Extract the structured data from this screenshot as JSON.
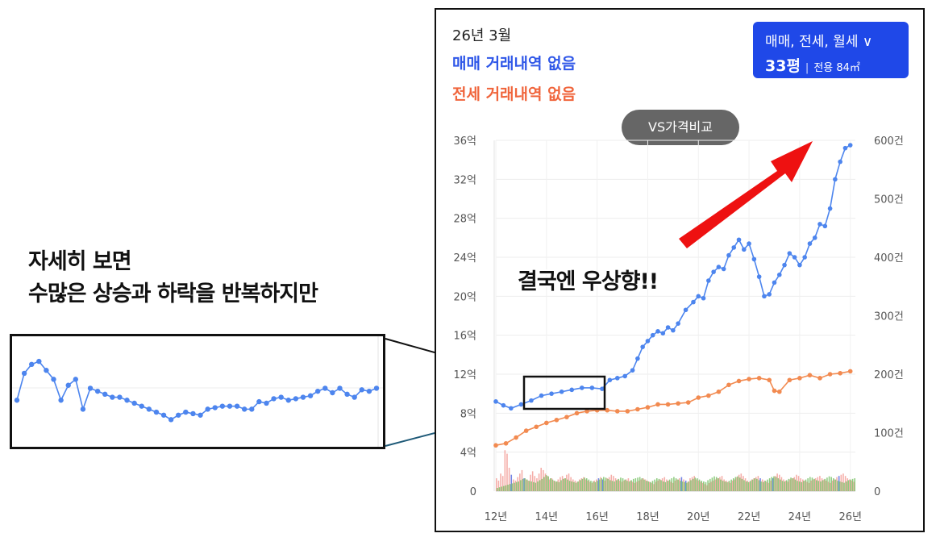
{
  "annotation": {
    "line1": "자세히 보면",
    "line2": "수많은 상승과 하락을 반복하지만",
    "trend_caption": "결국엔 우상향!!"
  },
  "header": {
    "date": "26년 3월",
    "sale_status": "매매 거래내역 없음",
    "jeonse_status": "전세 거래내역 없음"
  },
  "type_selector": {
    "types": "매매, 전세, 월세 ∨",
    "pyeong": "33평",
    "area": "전용 84㎡"
  },
  "vs_button": "VS가격비교",
  "colors": {
    "sale": "#4d85ee",
    "jeonse": "#f28a50",
    "vol_red": "#f3a09a",
    "vol_green": "#7bc36a",
    "vol_blue": "#5a6ee0",
    "arrow": "#ee1111"
  },
  "chart_data": {
    "type": "line",
    "x_tick_labels": [
      "12년",
      "14년",
      "16년",
      "18년",
      "20년",
      "22년",
      "24년",
      "26년"
    ],
    "y_left_tick_labels": [
      "0",
      "4억",
      "8억",
      "12억",
      "16억",
      "20억",
      "24억",
      "28억",
      "32억",
      "36억"
    ],
    "y_right_tick_labels": [
      "0",
      "100건",
      "200건",
      "300건",
      "400건",
      "500건",
      "600건"
    ],
    "xlim": [
      2012,
      2026.2
    ],
    "ylim_left": [
      0,
      36
    ],
    "ylim_right": [
      0,
      600
    ],
    "grid": true,
    "series": [
      {
        "key": "sale",
        "x": [
          2012.0,
          2012.3,
          2012.6,
          2013.0,
          2013.4,
          2013.8,
          2014.2,
          2014.6,
          2015.0,
          2015.4,
          2015.8,
          2016.2,
          2016.5,
          2016.8,
          2017.1,
          2017.4,
          2017.6,
          2017.8,
          2018.0,
          2018.2,
          2018.4,
          2018.6,
          2018.8,
          2019.0,
          2019.2,
          2019.5,
          2019.8,
          2020.0,
          2020.2,
          2020.4,
          2020.6,
          2020.8,
          2021.0,
          2021.2,
          2021.4,
          2021.6,
          2021.8,
          2022.0,
          2022.2,
          2022.4,
          2022.6,
          2022.8,
          2023.0,
          2023.2,
          2023.4,
          2023.6,
          2023.8,
          2024.0,
          2024.2,
          2024.4,
          2024.6,
          2024.8,
          2025.0,
          2025.2,
          2025.4,
          2025.6,
          2025.8,
          2026.0
        ],
        "values": [
          9.2,
          8.8,
          8.5,
          8.9,
          9.3,
          9.8,
          10.0,
          10.2,
          10.4,
          10.6,
          10.6,
          10.5,
          11.4,
          11.6,
          11.8,
          12.4,
          13.6,
          14.8,
          15.4,
          16.0,
          16.4,
          16.2,
          16.8,
          16.5,
          17.2,
          18.6,
          19.4,
          20.0,
          19.8,
          21.6,
          22.5,
          23.0,
          22.8,
          24.2,
          25.0,
          25.8,
          24.8,
          25.4,
          23.8,
          22.0,
          20.0,
          20.2,
          21.4,
          22.2,
          23.2,
          24.4,
          24.0,
          23.2,
          24.0,
          25.4,
          26.0,
          27.4,
          27.2,
          29.0,
          32.0,
          33.8,
          35.2,
          35.5
        ]
      },
      {
        "key": "jeonse",
        "x": [
          2012.0,
          2012.4,
          2012.8,
          2013.2,
          2013.6,
          2014.0,
          2014.4,
          2014.8,
          2015.2,
          2015.6,
          2016.0,
          2016.4,
          2016.8,
          2017.2,
          2017.6,
          2018.0,
          2018.4,
          2018.8,
          2019.2,
          2019.6,
          2020.0,
          2020.4,
          2020.8,
          2021.2,
          2021.6,
          2022.0,
          2022.4,
          2022.8,
          2023.0,
          2023.2,
          2023.6,
          2024.0,
          2024.4,
          2024.8,
          2025.2,
          2025.6,
          2026.0
        ],
        "values": [
          4.7,
          4.9,
          5.5,
          6.2,
          6.6,
          7.0,
          7.3,
          7.6,
          8.0,
          8.2,
          8.3,
          8.3,
          8.2,
          8.2,
          8.4,
          8.6,
          8.9,
          8.9,
          9.0,
          9.1,
          9.6,
          9.8,
          10.2,
          10.9,
          11.3,
          11.5,
          11.6,
          11.4,
          10.3,
          10.2,
          11.4,
          11.6,
          11.9,
          11.6,
          12.0,
          12.1,
          12.3
        ]
      }
    ],
    "volume": {
      "note": "monthly transaction counts (right axis), red = sale, green = jeonse",
      "sale": [
        22,
        18,
        30,
        26,
        70,
        64,
        40,
        28,
        20,
        18,
        24,
        30,
        36,
        22,
        20,
        18,
        28,
        34,
        26,
        22,
        30,
        40,
        36,
        30,
        26,
        20,
        22,
        18,
        16,
        20,
        24,
        26,
        22,
        28,
        30,
        24,
        20,
        18,
        16,
        20,
        22,
        24,
        20,
        18,
        16,
        14,
        18,
        20,
        22,
        24,
        20,
        18,
        22,
        24,
        28,
        26,
        22,
        20,
        18,
        16,
        18,
        20,
        22,
        18,
        16,
        14,
        16,
        18,
        20,
        22,
        20,
        18,
        16,
        14,
        12,
        16,
        18,
        20,
        22,
        24,
        20,
        18,
        16,
        14,
        18,
        20,
        22,
        24,
        20,
        18,
        16,
        22,
        24,
        26,
        20,
        18,
        16,
        14,
        12,
        10,
        14,
        16,
        18,
        20,
        22,
        24,
        26,
        20,
        18,
        16,
        14,
        18,
        20,
        24,
        28,
        30,
        26,
        22,
        18,
        16,
        20,
        22,
        24,
        26,
        22,
        20,
        18,
        16,
        14,
        18,
        22,
        26,
        30,
        28,
        24,
        20,
        18,
        16,
        20,
        22,
        24,
        28,
        26,
        22,
        20,
        18,
        16,
        14,
        18,
        20,
        22,
        24,
        26,
        22,
        20,
        18,
        16,
        14,
        18,
        20,
        24,
        26,
        28,
        30,
        26,
        22,
        20,
        18,
        16
      ],
      "jeonse": [
        10,
        12,
        14,
        16,
        18,
        20,
        22,
        24,
        26,
        28,
        30,
        34,
        38,
        40,
        36,
        32,
        30,
        28,
        26,
        30,
        34,
        38,
        44,
        50,
        46,
        40,
        36,
        32,
        30,
        28,
        34,
        38,
        40,
        36,
        32,
        30,
        28,
        26,
        30,
        34,
        38,
        42,
        40,
        36,
        32,
        30,
        28,
        32,
        36,
        40,
        44,
        42,
        38,
        34,
        32,
        30,
        34,
        38,
        42,
        40,
        36,
        32,
        30,
        34,
        38,
        40,
        42,
        44,
        40,
        36,
        32,
        30,
        28,
        32,
        36,
        40,
        38,
        34,
        30,
        28,
        32,
        36,
        40,
        44,
        40,
        36,
        32,
        30,
        28,
        26,
        30,
        34,
        38,
        42,
        40,
        36,
        32,
        30,
        28,
        34,
        38,
        42,
        46,
        44,
        40,
        36,
        32,
        30,
        28,
        32,
        36,
        40,
        44,
        46,
        42,
        38,
        34,
        30,
        28,
        32,
        36,
        40,
        38,
        34,
        30,
        28,
        32,
        36,
        40,
        44,
        46,
        44,
        40,
        36,
        32,
        30,
        34,
        38,
        42,
        40,
        36,
        32,
        30,
        28,
        32,
        36,
        40,
        44,
        42,
        38,
        34,
        32,
        30,
        34,
        38,
        42,
        46,
        44,
        40,
        36,
        32,
        30,
        28,
        26,
        30,
        34,
        36,
        38,
        40
      ]
    },
    "zoom_inset": {
      "x": [
        2013.1,
        2013.17,
        2013.24,
        2013.31,
        2013.38,
        2013.45,
        2013.52,
        2013.59,
        2013.66,
        2013.73,
        2013.8,
        2013.87,
        2013.94,
        2014.01,
        2014.08,
        2014.15,
        2014.22,
        2014.29,
        2014.36,
        2014.43,
        2014.5,
        2014.57,
        2014.64,
        2014.71,
        2014.78,
        2014.85,
        2014.92,
        2014.99,
        2015.06,
        2015.13,
        2015.2,
        2015.27,
        2015.34,
        2015.41,
        2015.48,
        2015.55,
        2015.62,
        2015.69,
        2015.76,
        2015.83,
        2015.9,
        2015.97,
        2016.04,
        2016.11,
        2016.18,
        2016.25,
        2016.32,
        2016.39,
        2016.46,
        2016.53
      ],
      "values": [
        9.6,
        10.5,
        10.8,
        10.9,
        10.6,
        10.3,
        9.6,
        10.1,
        10.3,
        9.3,
        10.0,
        9.9,
        9.8,
        9.7,
        9.7,
        9.6,
        9.5,
        9.4,
        9.3,
        9.2,
        9.1,
        8.95,
        9.1,
        9.2,
        9.15,
        9.1,
        9.3,
        9.35,
        9.4,
        9.4,
        9.4,
        9.3,
        9.3,
        9.55,
        9.5,
        9.65,
        9.7,
        9.6,
        9.65,
        9.7,
        9.75,
        9.9,
        10.0,
        9.85,
        10.0,
        9.8,
        9.7,
        9.95,
        9.9,
        10.0
      ],
      "ylim": [
        8.5,
        11.2
      ]
    }
  }
}
